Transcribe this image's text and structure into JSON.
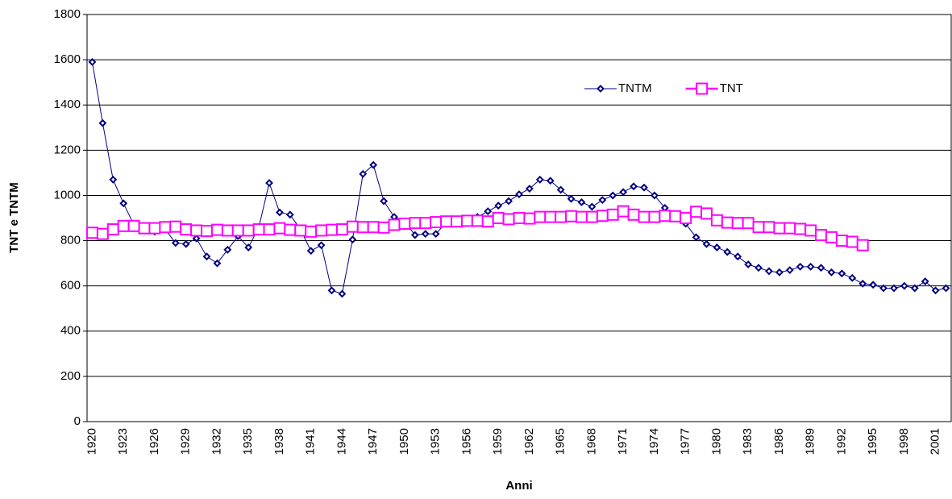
{
  "chart_data": {
    "type": "line",
    "x_label": "Anni",
    "y_label": "TNT e TNTM",
    "categories": [
      "1920",
      null,
      null,
      "1923",
      null,
      null,
      "1926",
      null,
      null,
      "1929",
      null,
      null,
      "1932",
      null,
      null,
      "1935",
      null,
      null,
      "1938",
      null,
      null,
      "1941",
      null,
      null,
      "1944",
      null,
      null,
      "1947",
      null,
      null,
      "1950",
      null,
      null,
      "1953",
      null,
      null,
      "1956",
      null,
      null,
      "1959",
      null,
      null,
      "1962",
      null,
      null,
      "1965",
      null,
      null,
      "1968",
      null,
      null,
      "1971",
      null,
      null,
      "1974",
      null,
      null,
      "1977",
      null,
      null,
      "1980",
      null,
      null,
      "1983",
      null,
      null,
      "1986",
      null,
      null,
      "1989",
      null,
      null,
      "1992",
      null,
      null,
      "1995",
      null,
      null,
      "1998",
      null,
      null,
      "2001",
      null
    ],
    "series": [
      {
        "name": "TNTM",
        "color": "#000080",
        "marker": "diamond",
        "values": [
          1590,
          1320,
          1070,
          965,
          870,
          845,
          840,
          850,
          790,
          785,
          810,
          730,
          700,
          760,
          820,
          770,
          860,
          1055,
          925,
          915,
          850,
          755,
          780,
          580,
          565,
          805,
          1095,
          1135,
          975,
          905,
          885,
          825,
          830,
          830,
          880,
          890,
          895,
          905,
          930,
          955,
          975,
          1005,
          1030,
          1070,
          1065,
          1025,
          985,
          970,
          950,
          980,
          1000,
          1015,
          1040,
          1035,
          1000,
          945,
          900,
          875,
          815,
          785,
          770,
          750,
          730,
          695,
          680,
          665,
          660,
          670,
          685,
          685,
          680,
          660,
          655,
          635,
          610,
          605,
          590,
          590,
          600,
          590,
          620,
          580,
          590
        ]
      },
      {
        "name": "TNT",
        "color": "#FF00FF",
        "marker": "square",
        "values": [
          835,
          830,
          850,
          865,
          865,
          855,
          855,
          860,
          862,
          850,
          845,
          843,
          848,
          845,
          845,
          845,
          850,
          850,
          855,
          848,
          845,
          840,
          845,
          848,
          850,
          862,
          860,
          860,
          858,
          870,
          875,
          878,
          878,
          882,
          885,
          885,
          888,
          888,
          885,
          900,
          895,
          900,
          898,
          905,
          905,
          905,
          908,
          905,
          905,
          910,
          915,
          930,
          915,
          905,
          905,
          910,
          908,
          900,
          928,
          920,
          890,
          880,
          878,
          878,
          860,
          860,
          855,
          855,
          852,
          845,
          825,
          815,
          800,
          795,
          780,
          null,
          null,
          null,
          null,
          null,
          null,
          null,
          null
        ]
      }
    ],
    "ylim": [
      0,
      1800
    ],
    "yticks": [
      0,
      200,
      400,
      600,
      800,
      1000,
      1200,
      1400,
      1600,
      1800
    ],
    "grid": true,
    "legend": "upper right"
  }
}
